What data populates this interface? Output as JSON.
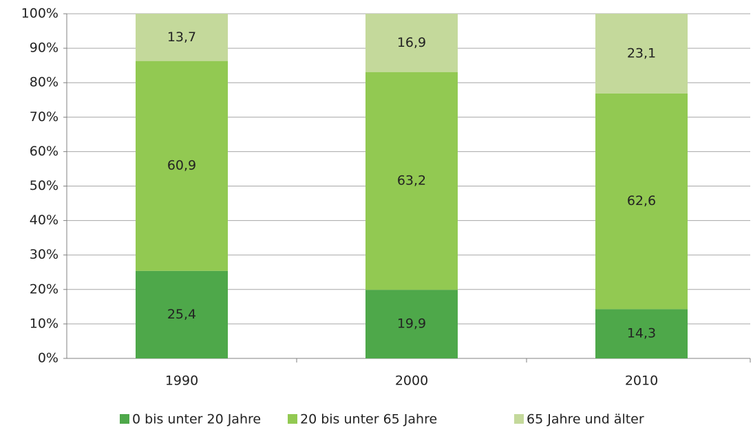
{
  "chart_data": {
    "type": "stacked_bar",
    "categories": [
      "1990",
      "2000",
      "2010"
    ],
    "series": [
      {
        "name": "0 bis unter 20 Jahre",
        "color": "#4ea84a",
        "values": [
          25.4,
          19.9,
          14.3
        ],
        "value_labels": [
          "25,4",
          "19,9",
          "14,3"
        ]
      },
      {
        "name": "20 bis unter 65 Jahre",
        "color": "#92c952",
        "values": [
          60.9,
          63.2,
          62.6
        ],
        "value_labels": [
          "60,9",
          "63,2",
          "62,6"
        ]
      },
      {
        "name": "65 Jahre und älter",
        "color": "#c4d99b",
        "values": [
          13.7,
          16.9,
          23.1
        ],
        "value_labels": [
          "13,7",
          "16,9",
          "23,1"
        ]
      }
    ],
    "ylim": [
      0,
      100
    ],
    "yticks": [
      {
        "value": 0,
        "label": "0%"
      },
      {
        "value": 10,
        "label": "10%"
      },
      {
        "value": 20,
        "label": "20%"
      },
      {
        "value": 30,
        "label": "30%"
      },
      {
        "value": 40,
        "label": "40%"
      },
      {
        "value": 50,
        "label": "50%"
      },
      {
        "value": 60,
        "label": "60%"
      },
      {
        "value": 70,
        "label": "70%"
      },
      {
        "value": 80,
        "label": "80%"
      },
      {
        "value": 90,
        "label": "90%"
      },
      {
        "value": 100,
        "label": "100%"
      }
    ],
    "grid": true,
    "legend": "bottom"
  }
}
